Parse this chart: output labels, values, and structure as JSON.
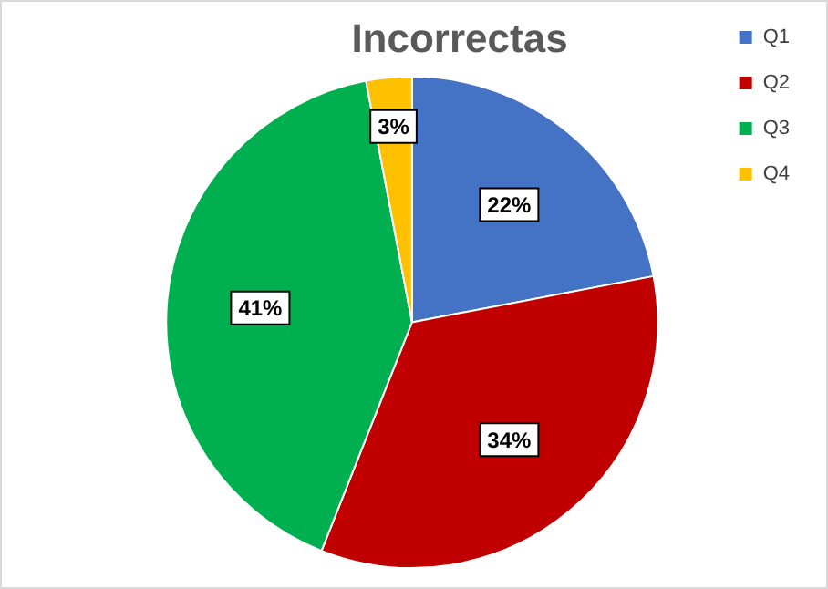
{
  "chart_data": {
    "type": "pie",
    "title": "Incorrectas",
    "categories": [
      "Q1",
      "Q2",
      "Q3",
      "Q4"
    ],
    "values": [
      22,
      34,
      41,
      3
    ],
    "colors": [
      "#4472c4",
      "#c00000",
      "#00b050",
      "#ffc000"
    ],
    "value_labels": [
      "22%",
      "34%",
      "41%",
      "3%"
    ],
    "legend": "top right"
  }
}
